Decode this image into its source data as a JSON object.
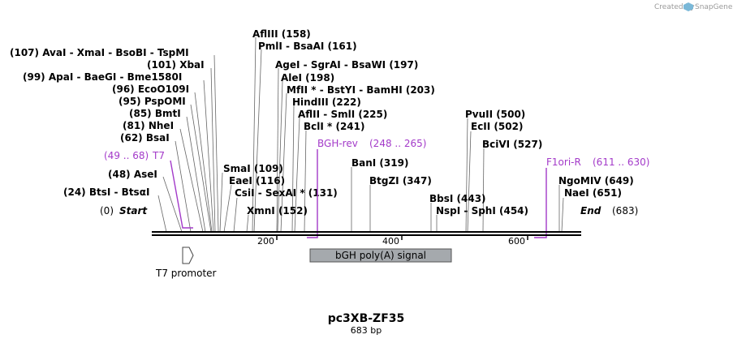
{
  "header": {
    "credit": "Created by",
    "brand": "SnapGene"
  },
  "map": {
    "name": "pc3XB-ZF35",
    "length_label": "683 bp",
    "length": 683,
    "scale_ticks": [
      "200",
      "400",
      "600"
    ]
  },
  "enzymes": [
    {
      "id": "avai",
      "label": "(107)  AvaI  -  XmaI  -  BsoBI  -  TspMI",
      "site": 107
    },
    {
      "id": "xbai",
      "label": "(101)  XbaI",
      "site": 101
    },
    {
      "id": "apai",
      "label": "(99)  ApaI  -  BaeGI  -  Bme1580I",
      "site": 99
    },
    {
      "id": "eco",
      "label": "(96)  EcoO109I",
      "site": 96
    },
    {
      "id": "psp",
      "label": "(95)  PspOMI",
      "site": 95
    },
    {
      "id": "bmti",
      "label": "(85)  BmtI",
      "site": 85
    },
    {
      "id": "nhei",
      "label": "(81)  NheI",
      "site": 81
    },
    {
      "id": "bsai",
      "label": "(62)  BsaI",
      "site": 62
    },
    {
      "id": "asei",
      "label": "(48)  AseI",
      "site": 48
    },
    {
      "id": "btsi",
      "label": "(24)  BtsI  -  BtsαI",
      "site": 24
    },
    {
      "id": "afliii",
      "label": "AflIII    (158)",
      "site": 158
    },
    {
      "id": "pmli",
      "label": "PmlI  -  BsaAI    (161)",
      "site": 161
    },
    {
      "id": "agei",
      "label": "AgeI  -  SgrAI  -  BsaWI    (197)",
      "site": 197
    },
    {
      "id": "alei",
      "label": "AleI    (198)",
      "site": 198
    },
    {
      "id": "mfli",
      "label": "MfII *  -  BstYI  -  BamHI    (203)",
      "site": 203
    },
    {
      "id": "hind",
      "label": "HindIII    (222)",
      "site": 222
    },
    {
      "id": "aflii",
      "label": "AflII  -  SmlI    (225)",
      "site": 225
    },
    {
      "id": "bcli",
      "label": "BclI *    (241)",
      "site": 241
    },
    {
      "id": "smai",
      "label": "SmaI    (109)",
      "site": 109
    },
    {
      "id": "eaei",
      "label": "EaeI    (116)",
      "site": 116
    },
    {
      "id": "csii",
      "label": "CsiI  -  SexAI *    (131)",
      "site": 131
    },
    {
      "id": "xmni",
      "label": "XmnI    (152)",
      "site": 152
    },
    {
      "id": "bani",
      "label": "BanI    (319)",
      "site": 319
    },
    {
      "id": "btgzi",
      "label": "BtgZI    (347)",
      "site": 347
    },
    {
      "id": "bbsi",
      "label": "BbsI    (443)",
      "site": 443
    },
    {
      "id": "nspi",
      "label": "NspI  -  SphI    (454)",
      "site": 454
    },
    {
      "id": "pvuii",
      "label": "PvuII    (500)",
      "site": 500
    },
    {
      "id": "ecli",
      "label": "EcII    (502)",
      "site": 502
    },
    {
      "id": "bcivi",
      "label": "BciVI    (527)",
      "site": 527
    },
    {
      "id": "ngo",
      "label": "NgoMIV    (649)",
      "site": 649
    },
    {
      "id": "naei",
      "label": "NaeI    (651)",
      "site": 651
    }
  ],
  "ends": {
    "start_pos": "(0)",
    "start_label": "Start",
    "end_label": "End",
    "end_pos": "(683)"
  },
  "primers": [
    {
      "id": "t7",
      "range": "(49 .. 68)",
      "name": "T7"
    },
    {
      "id": "bgh-rev",
      "name": "BGH-rev",
      "range": "(248 .. 265)"
    },
    {
      "id": "f1ori-r",
      "name": "F1ori-R",
      "range": "(611 .. 630)"
    }
  ],
  "features": [
    {
      "id": "t7-promoter",
      "label": "T7 promoter"
    },
    {
      "id": "bgh-polya",
      "label": "bGH poly(A) signal"
    }
  ],
  "colors": {
    "primer": "#a33ac9",
    "feature_fill": "#a5a9ad",
    "backbone": "#000000",
    "credit_text": "#9a9a9a",
    "brand_logo": "#7ab8d8"
  }
}
